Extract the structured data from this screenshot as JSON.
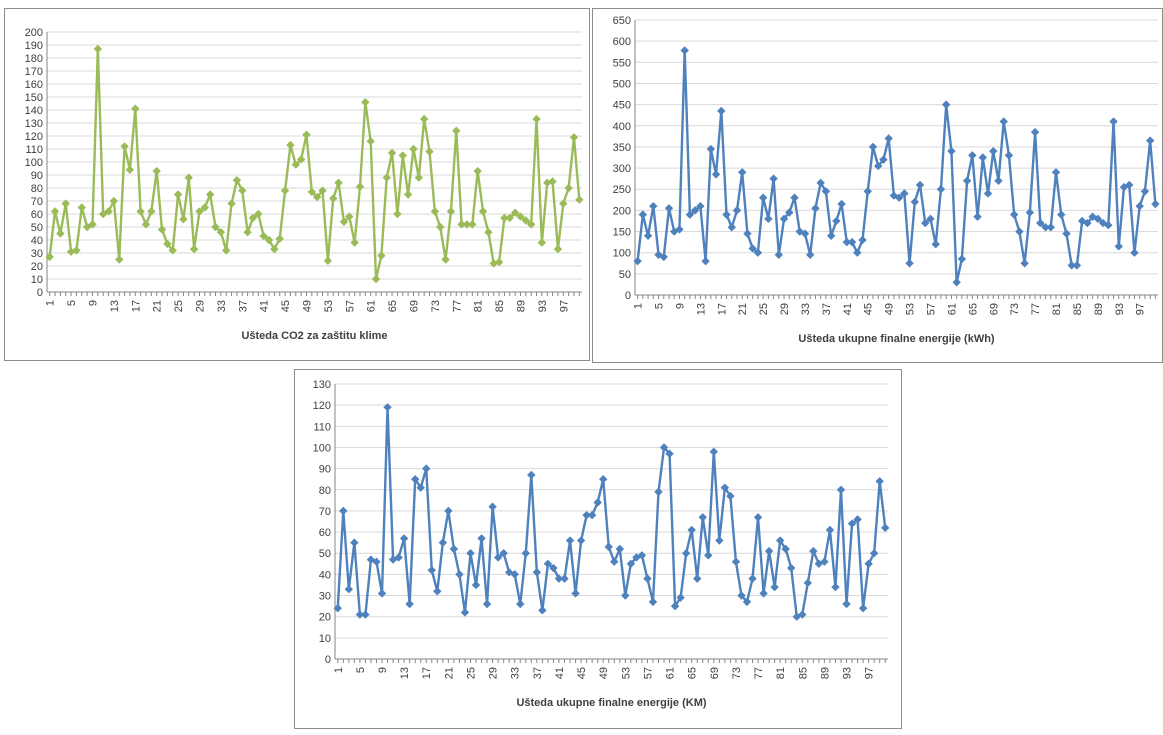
{
  "chart_data": [
    {
      "id": "co2",
      "type": "line",
      "xlabel": "Ušteda CO2 za zaštitu klime",
      "ylabel": "",
      "ylim": [
        0,
        200
      ],
      "ytick_step": 10,
      "grid": true,
      "legend": "none",
      "x_tick_labels": [
        "1",
        "5",
        "9",
        "13",
        "17",
        "21",
        "25",
        "29",
        "33",
        "37",
        "41",
        "45",
        "49",
        "53",
        "57",
        "61",
        "65",
        "69",
        "73",
        "77",
        "81",
        "85",
        "89",
        "93",
        "97"
      ],
      "series": [
        {
          "color": "#9bbb59",
          "x": [
            1,
            2,
            3,
            4,
            5,
            6,
            7,
            8,
            9,
            10,
            11,
            12,
            13,
            14,
            15,
            16,
            17,
            18,
            19,
            20,
            21,
            22,
            23,
            24,
            25,
            26,
            27,
            28,
            29,
            30,
            31,
            32,
            33,
            34,
            35,
            36,
            37,
            38,
            39,
            40,
            41,
            42,
            43,
            44,
            45,
            46,
            47,
            48,
            49,
            50,
            51,
            52,
            53,
            54,
            55,
            56,
            57,
            58,
            59,
            60,
            61,
            62,
            63,
            64,
            65,
            66,
            67,
            68,
            69,
            70,
            71,
            72,
            73,
            74,
            75,
            76,
            77,
            78,
            79,
            80,
            81,
            82,
            83,
            84,
            85,
            86,
            87,
            88,
            89,
            90,
            91,
            92,
            93,
            94,
            95,
            96,
            97,
            98,
            99,
            100
          ],
          "values": [
            27,
            62,
            45,
            68,
            31,
            32,
            65,
            50,
            52,
            187,
            60,
            62,
            70,
            25,
            112,
            94,
            141,
            62,
            52,
            62,
            93,
            48,
            37,
            32,
            75,
            56,
            88,
            33,
            62,
            65,
            75,
            50,
            46,
            32,
            68,
            86,
            78,
            46,
            57,
            60,
            43,
            40,
            33,
            41,
            78,
            113,
            98,
            102,
            121,
            77,
            73,
            78,
            24,
            72,
            84,
            54,
            58,
            38,
            81,
            146,
            116,
            10,
            28,
            88,
            107,
            60,
            105,
            75,
            110,
            88,
            133,
            108,
            62,
            50,
            25,
            62,
            124,
            52,
            52,
            52,
            93,
            62,
            46,
            22,
            23,
            57,
            57,
            61,
            58,
            55,
            52,
            133,
            38,
            84,
            85,
            33,
            68,
            80,
            119,
            71
          ]
        }
      ]
    },
    {
      "id": "energy_kwh",
      "type": "line",
      "xlabel": "Ušteda ukupne finalne energije (kWh)",
      "ylabel": "",
      "ylim": [
        0,
        650
      ],
      "ytick_step": 50,
      "grid": true,
      "legend": "none",
      "x_tick_labels": [
        "1",
        "5",
        "9",
        "13",
        "17",
        "21",
        "25",
        "29",
        "33",
        "37",
        "41",
        "45",
        "49",
        "53",
        "57",
        "61",
        "65",
        "69",
        "73",
        "77",
        "81",
        "85",
        "89",
        "93",
        "97"
      ],
      "series": [
        {
          "color": "#4f81bd",
          "x": [
            1,
            2,
            3,
            4,
            5,
            6,
            7,
            8,
            9,
            10,
            11,
            12,
            13,
            14,
            15,
            16,
            17,
            18,
            19,
            20,
            21,
            22,
            23,
            24,
            25,
            26,
            27,
            28,
            29,
            30,
            31,
            32,
            33,
            34,
            35,
            36,
            37,
            38,
            39,
            40,
            41,
            42,
            43,
            44,
            45,
            46,
            47,
            48,
            49,
            50,
            51,
            52,
            53,
            54,
            55,
            56,
            57,
            58,
            59,
            60,
            61,
            62,
            63,
            64,
            65,
            66,
            67,
            68,
            69,
            70,
            71,
            72,
            73,
            74,
            75,
            76,
            77,
            78,
            79,
            80,
            81,
            82,
            83,
            84,
            85,
            86,
            87,
            88,
            89,
            90,
            91,
            92,
            93,
            94,
            95,
            96,
            97,
            98,
            99,
            100
          ],
          "values": [
            80,
            190,
            140,
            210,
            95,
            90,
            205,
            150,
            155,
            578,
            190,
            200,
            210,
            80,
            345,
            285,
            435,
            190,
            160,
            200,
            290,
            145,
            110,
            100,
            230,
            180,
            275,
            95,
            180,
            195,
            230,
            150,
            145,
            95,
            205,
            265,
            245,
            140,
            175,
            215,
            125,
            125,
            100,
            130,
            245,
            350,
            305,
            320,
            370,
            235,
            230,
            240,
            75,
            220,
            260,
            170,
            180,
            120,
            250,
            450,
            340,
            30,
            85,
            270,
            330,
            185,
            325,
            240,
            340,
            270,
            410,
            330,
            190,
            150,
            75,
            195,
            385,
            170,
            160,
            160,
            290,
            190,
            145,
            70,
            70,
            175,
            170,
            185,
            180,
            170,
            165,
            410,
            115,
            255,
            260,
            100,
            210,
            245,
            365,
            215
          ]
        }
      ]
    },
    {
      "id": "energy_km",
      "type": "line",
      "xlabel": "Ušteda ukupne finalne energije (KM)",
      "ylabel": "",
      "ylim": [
        0,
        130
      ],
      "ytick_step": 10,
      "grid": true,
      "legend": "none",
      "x_tick_labels": [
        "1",
        "5",
        "9",
        "13",
        "17",
        "21",
        "25",
        "29",
        "33",
        "37",
        "41",
        "45",
        "49",
        "53",
        "57",
        "61",
        "65",
        "69",
        "73",
        "77",
        "81",
        "85",
        "89",
        "93",
        "97"
      ],
      "series": [
        {
          "color": "#4f81bd",
          "x": [
            1,
            2,
            3,
            4,
            5,
            6,
            7,
            8,
            9,
            10,
            11,
            12,
            13,
            14,
            15,
            16,
            17,
            18,
            19,
            20,
            21,
            22,
            23,
            24,
            25,
            26,
            27,
            28,
            29,
            30,
            31,
            32,
            33,
            34,
            35,
            36,
            37,
            38,
            39,
            40,
            41,
            42,
            43,
            44,
            45,
            46,
            47,
            48,
            49,
            50,
            51,
            52,
            53,
            54,
            55,
            56,
            57,
            58,
            59,
            60,
            61,
            62,
            63,
            64,
            65,
            66,
            67,
            68,
            69,
            70,
            71,
            72,
            73,
            74,
            75,
            76,
            77,
            78,
            79,
            80,
            81,
            82,
            83,
            84,
            85,
            86,
            87,
            88,
            89,
            90,
            91,
            92,
            93,
            94,
            95,
            96,
            97,
            98,
            99,
            100
          ],
          "values": [
            24,
            70,
            33,
            55,
            21,
            21,
            47,
            46,
            31,
            119,
            47,
            48,
            57,
            26,
            85,
            81,
            90,
            42,
            32,
            55,
            70,
            52,
            40,
            22,
            50,
            35,
            57,
            26,
            72,
            48,
            50,
            41,
            40,
            26,
            50,
            87,
            41,
            23,
            45,
            43,
            38,
            38,
            56,
            31,
            56,
            68,
            68,
            74,
            85,
            53,
            46,
            52,
            30,
            45,
            48,
            49,
            38,
            27,
            79,
            100,
            97,
            25,
            29,
            50,
            61,
            38,
            67,
            49,
            98,
            56,
            81,
            77,
            46,
            30,
            27,
            38,
            67,
            31,
            51,
            34,
            56,
            52,
            43,
            20,
            21,
            36,
            51,
            45,
            46,
            61,
            34,
            80,
            26,
            64,
            66,
            24,
            45,
            50,
            84,
            62
          ]
        }
      ]
    }
  ]
}
